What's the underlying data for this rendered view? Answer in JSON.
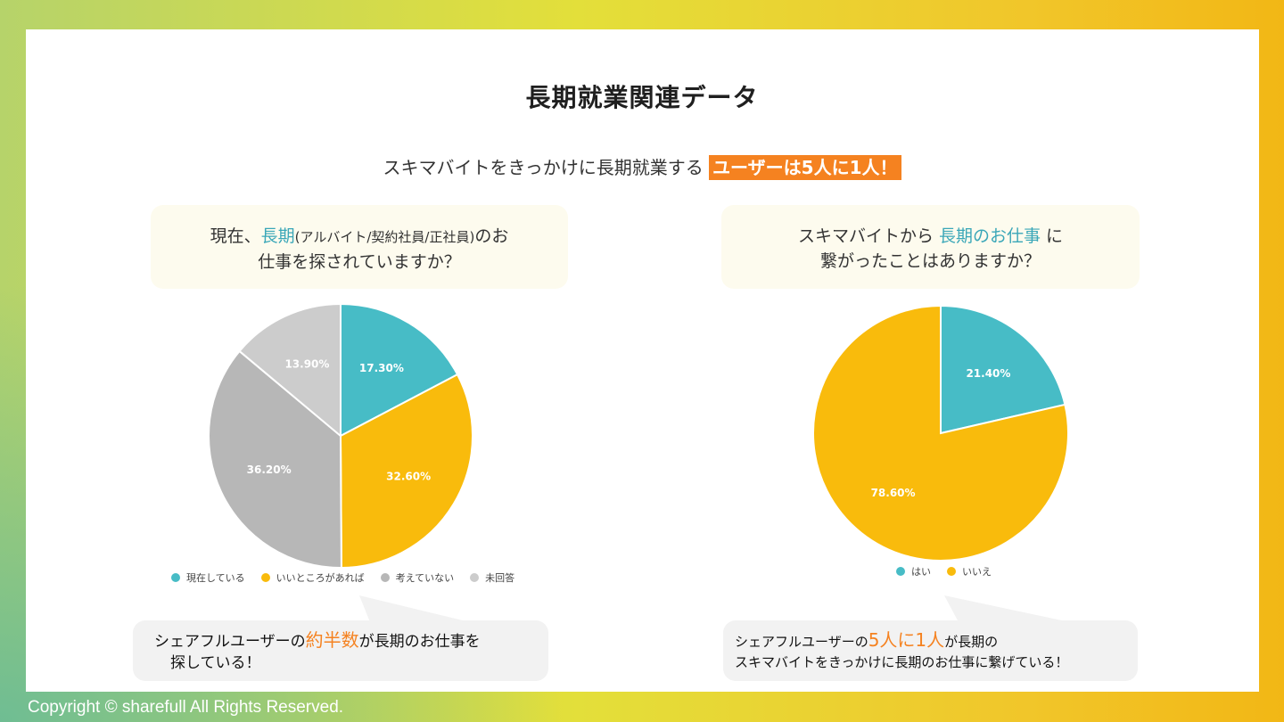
{
  "title": "長期就業関連データ",
  "subtitle": {
    "text": "スキマバイトをきっかけに長期就業する",
    "highlight": "ユーザーは5人に1人！"
  },
  "left_question": {
    "line1_pre": "現在、",
    "line1_teal": "長期",
    "line1_small": "(アルバイト/契約社員/正社員)",
    "line1_post": "のお",
    "line2": "仕事を探されていますか？"
  },
  "right_question": {
    "line1_pre": "スキマバイトから ",
    "line1_teal": "長期のお仕事",
    "line1_post": " に",
    "line2": "繋がったことはありますか？"
  },
  "left_bubble": {
    "pre": "シェアフルユーザーの",
    "highlight": "約半数",
    "post": "が長期のお仕事を",
    "line2": "探している！"
  },
  "right_bubble": {
    "pre": "シェアフルユーザーの",
    "highlight": "5人に1人",
    "post": "が長期の",
    "line2": "スキマバイトをきっかけに長期のお仕事に繋げている！"
  },
  "footer": "Copyright © sharefull All Rights Reserved.",
  "chart_data": [
    {
      "type": "pie",
      "categories": [
        "現在している",
        "いいところがあれば",
        "考えていない",
        "未回答"
      ],
      "values": [
        17.3,
        32.6,
        36.2,
        13.9
      ],
      "labels": [
        "17.30%",
        "32.60%",
        "36.20%",
        "13.90%"
      ],
      "colors": [
        "#47bcc6",
        "#f9bb0c",
        "#b7b7b7",
        "#cccccc"
      ],
      "legend": "bottom"
    },
    {
      "type": "pie",
      "categories": [
        "はい",
        "いいえ"
      ],
      "values": [
        21.4,
        78.6
      ],
      "labels": [
        "21.40%",
        "78.60%"
      ],
      "colors": [
        "#47bcc6",
        "#f9bb0c"
      ],
      "legend": "bottom"
    }
  ]
}
